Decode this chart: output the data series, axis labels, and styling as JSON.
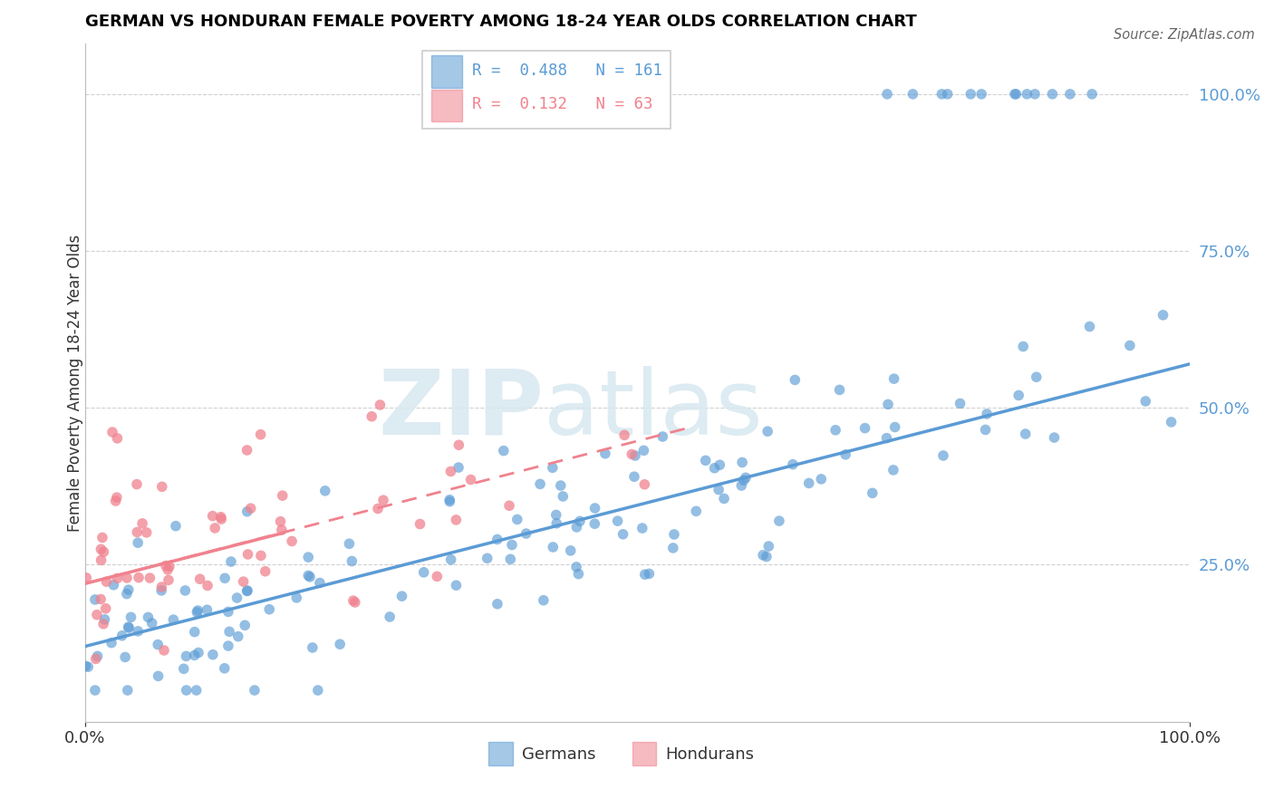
{
  "title": "GERMAN VS HONDURAN FEMALE POVERTY AMONG 18-24 YEAR OLDS CORRELATION CHART",
  "source": "Source: ZipAtlas.com",
  "ylabel": "Female Poverty Among 18-24 Year Olds",
  "german_color": "#5b9bd5",
  "honduran_color": "#f0828e",
  "german_R": 0.488,
  "german_N": 161,
  "honduran_R": 0.132,
  "honduran_N": 63,
  "watermark_zip": "ZIP",
  "watermark_atlas": "atlas",
  "german_line_x": [
    0.0,
    1.0
  ],
  "german_line_y": [
    0.12,
    0.57
  ],
  "honduran_line_x": [
    0.0,
    0.55
  ],
  "honduran_line_y": [
    0.22,
    0.47
  ],
  "ylim": [
    0.0,
    1.08
  ],
  "xlim": [
    0.0,
    1.0
  ],
  "yticks": [
    0.0,
    0.25,
    0.5,
    0.75,
    1.0
  ],
  "ytick_labels": [
    "",
    "25.0%",
    "50.0%",
    "75.0%",
    "100.0%"
  ],
  "xtick_labels": [
    "0.0%",
    "100.0%"
  ],
  "grid_color": "#d0d0d0",
  "spine_color": "#bbbbbb"
}
